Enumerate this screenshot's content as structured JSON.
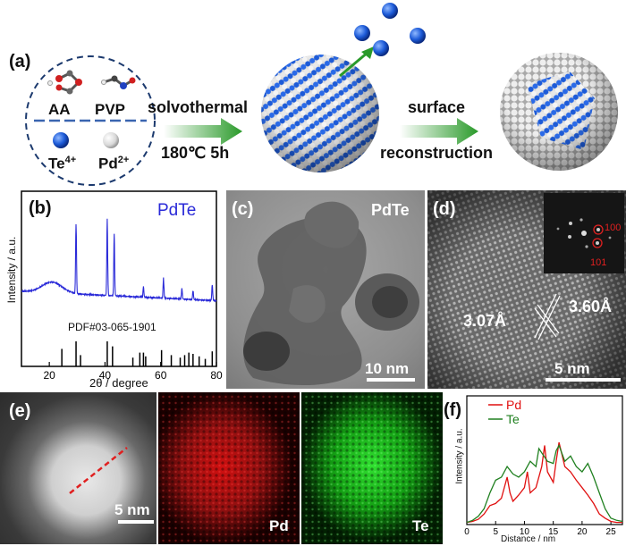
{
  "panel_a": {
    "label": "(a)",
    "reagents": {
      "aa": "AA",
      "pvp": "PVP",
      "te": "Te",
      "te_sup": "4+",
      "pd": "Pd",
      "pd_sup": "2+"
    },
    "step1_top": "solvothermal",
    "step1_bottom": "180℃  5h",
    "step2_top": "surface",
    "step2_bottom": "reconstruction"
  },
  "panel_b": {
    "label": "(b)",
    "sample": "PdTe",
    "ylabel": "Intensity / a.u.",
    "xlabel": "2θ / degree",
    "reference": "PDF#03-065-1901",
    "colors": {
      "pattern": "#2a2ad8",
      "reference": "#000000"
    }
  },
  "panel_c": {
    "label": "(c)",
    "sample": "PdTe",
    "scale": "10 nm"
  },
  "panel_d": {
    "label": "(d)",
    "d1": "3.07Å",
    "d2": "3.60Å",
    "spot1": "100",
    "spot2": "101",
    "scale": "5 nm"
  },
  "panel_e": {
    "label": "(e)",
    "scale": "5 nm",
    "map_pd": "Pd",
    "map_te": "Te",
    "colors": {
      "pd": "#e01010",
      "te": "#20c020"
    }
  },
  "panel_f": {
    "label": "(f)",
    "ylabel": "Intensity / a.u.",
    "xlabel": "Distance / nm"
  },
  "chart_data": [
    {
      "type": "line",
      "panel": "b",
      "title": "PdTe",
      "xlabel": "2θ / degree",
      "ylabel": "Intensity / a.u.",
      "xlim": [
        10,
        80
      ],
      "xticks": [
        20,
        40,
        60,
        80
      ],
      "series": [
        {
          "name": "PdTe",
          "peaks_2theta": [
            29.6,
            40.8,
            43.3,
            53.8,
            61.0,
            67.6,
            71.6,
            78.5
          ],
          "peak_rel_intensity": [
            0.78,
            0.86,
            0.7,
            0.12,
            0.22,
            0.12,
            0.1,
            0.18
          ]
        }
      ],
      "reference_lines_2theta": [
        24.5,
        29.6,
        31.2,
        40.8,
        42.7,
        50.0,
        52.5,
        53.8,
        54.6,
        60.3,
        63.8,
        67.0,
        68.6,
        70.1,
        71.6,
        73.8,
        76.0,
        78.5
      ],
      "reference_heights": [
        0.7,
        1.0,
        0.45,
        1.0,
        0.8,
        0.35,
        0.55,
        0.55,
        0.4,
        0.65,
        0.45,
        0.35,
        0.45,
        0.55,
        0.5,
        0.4,
        0.3,
        0.6
      ]
    },
    {
      "type": "line",
      "panel": "f",
      "xlabel": "Distance / nm",
      "ylabel": "Intensity / a.u.",
      "xlim": [
        0,
        27
      ],
      "xticks": [
        0,
        5,
        10,
        15,
        20,
        25
      ],
      "legend": "top-left",
      "series": [
        {
          "name": "Pd",
          "color": "#e01010",
          "x": [
            0,
            1,
            2,
            3,
            4,
            5,
            6,
            7,
            7.5,
            8,
            9,
            10,
            10.5,
            11,
            12,
            13,
            13.5,
            14,
            15,
            15.5,
            16,
            17,
            18,
            19,
            20,
            21,
            22,
            23,
            24,
            25,
            26,
            27
          ],
          "y": [
            0.02,
            0.03,
            0.05,
            0.1,
            0.18,
            0.2,
            0.25,
            0.45,
            0.3,
            0.22,
            0.28,
            0.35,
            0.5,
            0.3,
            0.35,
            0.55,
            0.75,
            0.5,
            0.4,
            0.6,
            0.78,
            0.55,
            0.5,
            0.42,
            0.35,
            0.28,
            0.2,
            0.1,
            0.06,
            0.03,
            0.02,
            0.02
          ]
        },
        {
          "name": "Te",
          "color": "#208020",
          "x": [
            0,
            1,
            2,
            3,
            4,
            5,
            6,
            7,
            8,
            9,
            10,
            11,
            12,
            12.5,
            13,
            14,
            15,
            15.5,
            16,
            17,
            18,
            19,
            20,
            21,
            22,
            23,
            24,
            25,
            26,
            27
          ],
          "y": [
            0.02,
            0.04,
            0.08,
            0.15,
            0.3,
            0.42,
            0.45,
            0.55,
            0.48,
            0.45,
            0.5,
            0.6,
            0.55,
            0.72,
            0.68,
            0.6,
            0.58,
            0.7,
            0.75,
            0.6,
            0.65,
            0.55,
            0.5,
            0.58,
            0.45,
            0.3,
            0.15,
            0.06,
            0.04,
            0.03
          ]
        }
      ]
    }
  ]
}
